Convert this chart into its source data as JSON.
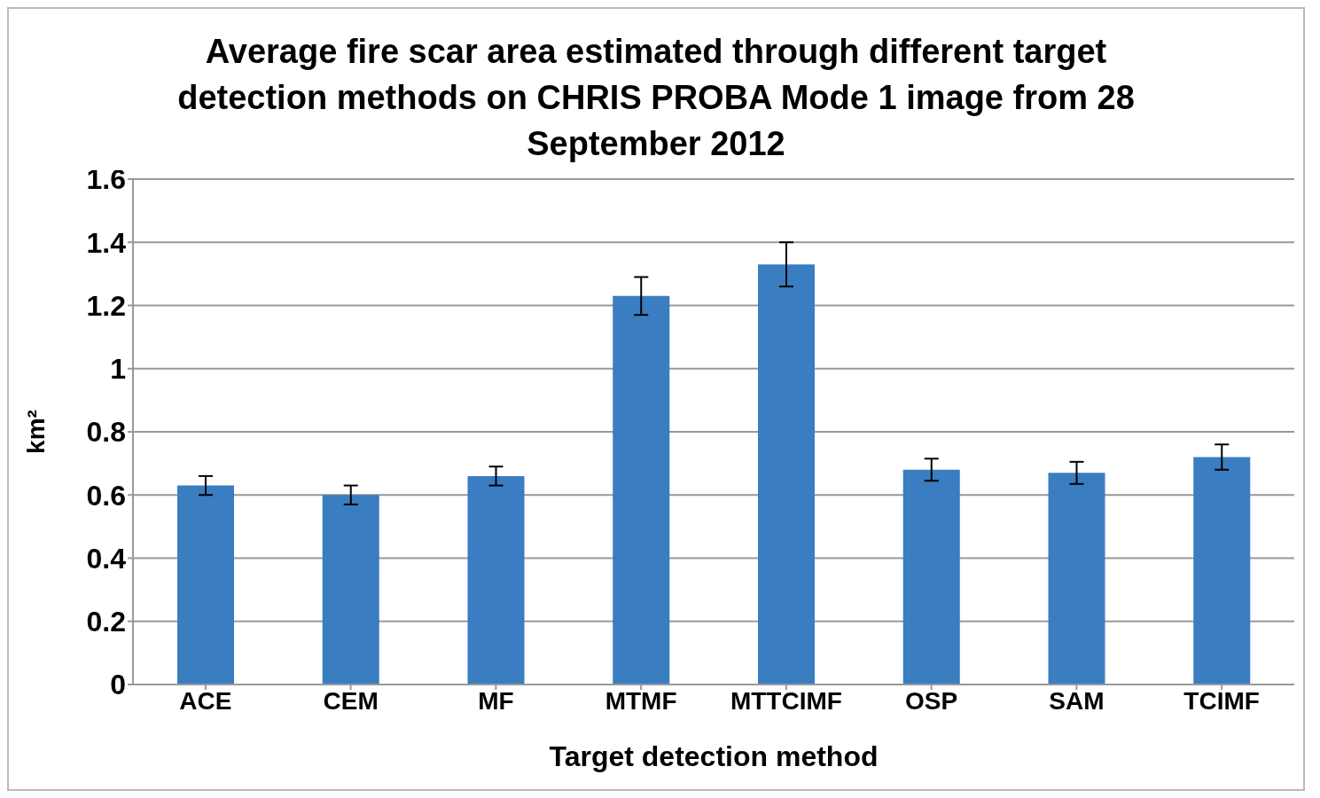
{
  "chart_data": {
    "type": "bar",
    "title": "Average fire scar area estimated through different target detection methods on CHRIS PROBA Mode 1 image from 28 September 2012",
    "xlabel": "Target detection method",
    "ylabel": "km²",
    "categories": [
      "ACE",
      "CEM",
      "MF",
      "MTMF",
      "MTTCIMF",
      "OSP",
      "SAM",
      "TCIMF"
    ],
    "values": [
      0.63,
      0.6,
      0.66,
      1.23,
      1.33,
      0.68,
      0.67,
      0.72
    ],
    "errors": [
      0.03,
      0.03,
      0.03,
      0.06,
      0.07,
      0.035,
      0.035,
      0.04
    ],
    "color": "#3a7dc1",
    "ylim": [
      0,
      1.6
    ],
    "yticks": [
      0,
      0.2,
      0.4,
      0.6,
      0.8,
      1,
      1.2,
      1.4,
      1.6
    ],
    "grid": "y",
    "legend": false
  }
}
